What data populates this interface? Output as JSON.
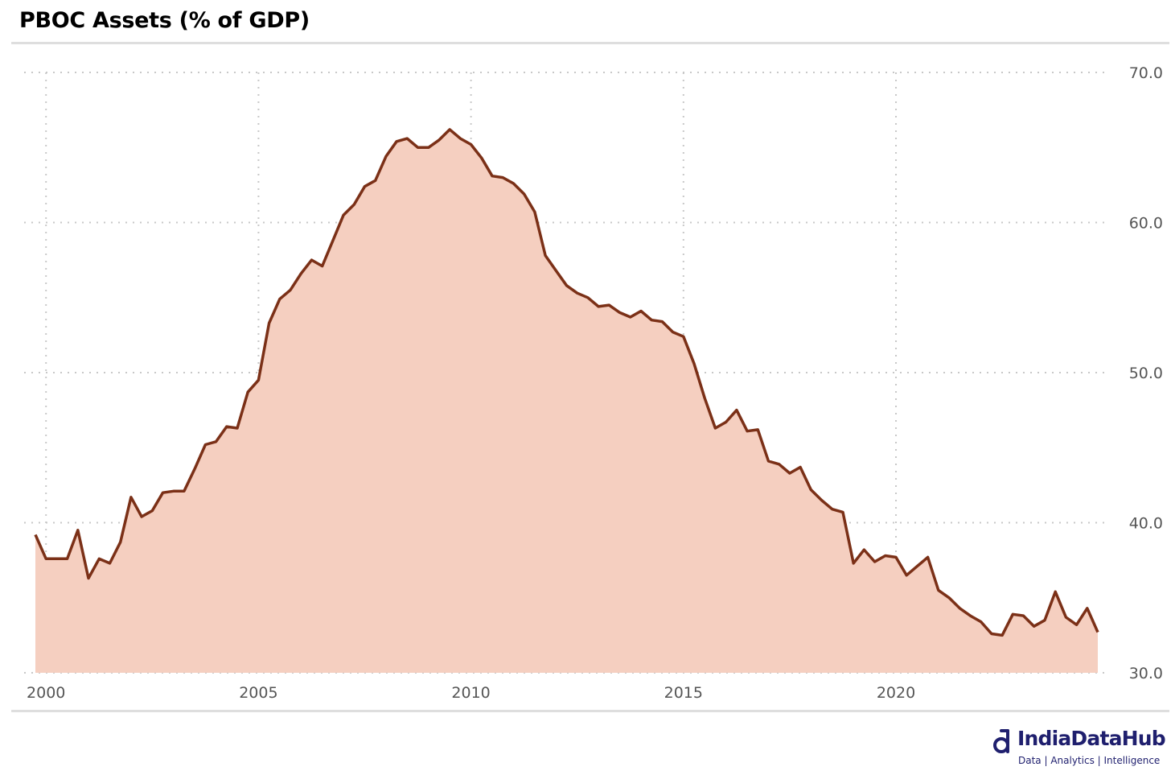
{
  "title": "PBOC Assets (% of GDP)",
  "brand": {
    "name": "IndiaDataHub",
    "tagline": "Data | Analytics | Intelligence",
    "color": "#1f1f6e"
  },
  "colors": {
    "line": "#7b3017",
    "fill": "#f5cfc0",
    "grid": "#c8c8c8",
    "tick": "#555555"
  },
  "chart_data": {
    "type": "area",
    "title": "PBOC Assets (% of GDP)",
    "xlabel": "",
    "ylabel": "",
    "xlim": [
      1999.75,
      2024.75
    ],
    "ylim": [
      30,
      70
    ],
    "y_axis_position": "right",
    "grid": true,
    "legend": "none",
    "x_ticks": [
      2000,
      2005,
      2010,
      2015,
      2020
    ],
    "y_ticks": [
      "30.0",
      "40.0",
      "50.0",
      "60.0",
      "70.0"
    ],
    "series": [
      {
        "x": [
          1999.75,
          2000.0,
          2000.25,
          2000.5,
          2000.75,
          2001.0,
          2001.25,
          2001.5,
          2001.75,
          2002.0,
          2002.25,
          2002.5,
          2002.75,
          2003.0,
          2003.25,
          2003.5,
          2003.75,
          2004.0,
          2004.25,
          2004.5,
          2004.75,
          2005.0,
          2005.25,
          2005.5,
          2005.75,
          2006.0,
          2006.25,
          2006.5,
          2006.75,
          2007.0,
          2007.25,
          2007.5,
          2007.75,
          2008.0,
          2008.25,
          2008.5,
          2008.75,
          2009.0,
          2009.25,
          2009.5,
          2009.75,
          2010.0,
          2010.25,
          2010.5,
          2010.75,
          2011.0,
          2011.25,
          2011.5,
          2011.75,
          2012.0,
          2012.25,
          2012.5,
          2012.75,
          2013.0,
          2013.25,
          2013.5,
          2013.75,
          2014.0,
          2014.25,
          2014.5,
          2014.75,
          2015.0,
          2015.25,
          2015.5,
          2015.75,
          2016.0,
          2016.25,
          2016.5,
          2016.75,
          2017.0,
          2017.25,
          2017.5,
          2017.75,
          2018.0,
          2018.25,
          2018.5,
          2018.75,
          2019.0,
          2019.25,
          2019.5,
          2019.75,
          2020.0,
          2020.25,
          2020.5,
          2020.75,
          2021.0,
          2021.25,
          2021.5,
          2021.75,
          2022.0,
          2022.25,
          2022.5,
          2022.75,
          2023.0,
          2023.25,
          2023.5,
          2023.75,
          2024.0,
          2024.25,
          2024.5,
          2024.75
        ],
        "values": [
          39.2,
          37.6,
          37.6,
          37.6,
          39.5,
          36.3,
          37.6,
          37.3,
          38.7,
          41.7,
          40.4,
          40.8,
          42.0,
          42.1,
          42.1,
          43.6,
          45.2,
          45.4,
          46.4,
          46.3,
          48.7,
          49.5,
          53.3,
          54.9,
          55.5,
          56.6,
          57.5,
          57.1,
          58.8,
          60.5,
          61.2,
          62.4,
          62.8,
          64.4,
          65.4,
          65.6,
          65.0,
          65.0,
          65.5,
          66.2,
          65.6,
          65.2,
          64.3,
          63.1,
          63.0,
          62.6,
          61.9,
          60.7,
          57.8,
          56.8,
          55.8,
          55.3,
          55.0,
          54.4,
          54.5,
          54.0,
          53.7,
          54.1,
          53.5,
          53.4,
          52.7,
          52.4,
          50.6,
          48.3,
          46.3,
          46.7,
          47.5,
          46.1,
          46.2,
          44.1,
          43.9,
          43.3,
          43.7,
          42.2,
          41.5,
          40.9,
          40.7,
          37.3,
          38.2,
          37.4,
          37.8,
          37.7,
          36.5,
          37.1,
          37.7,
          35.5,
          35.0,
          34.3,
          33.8,
          33.4,
          32.6,
          32.5,
          33.9,
          33.8,
          33.1,
          33.5,
          35.4,
          33.7,
          33.2,
          34.3,
          32.7
        ]
      }
    ]
  }
}
